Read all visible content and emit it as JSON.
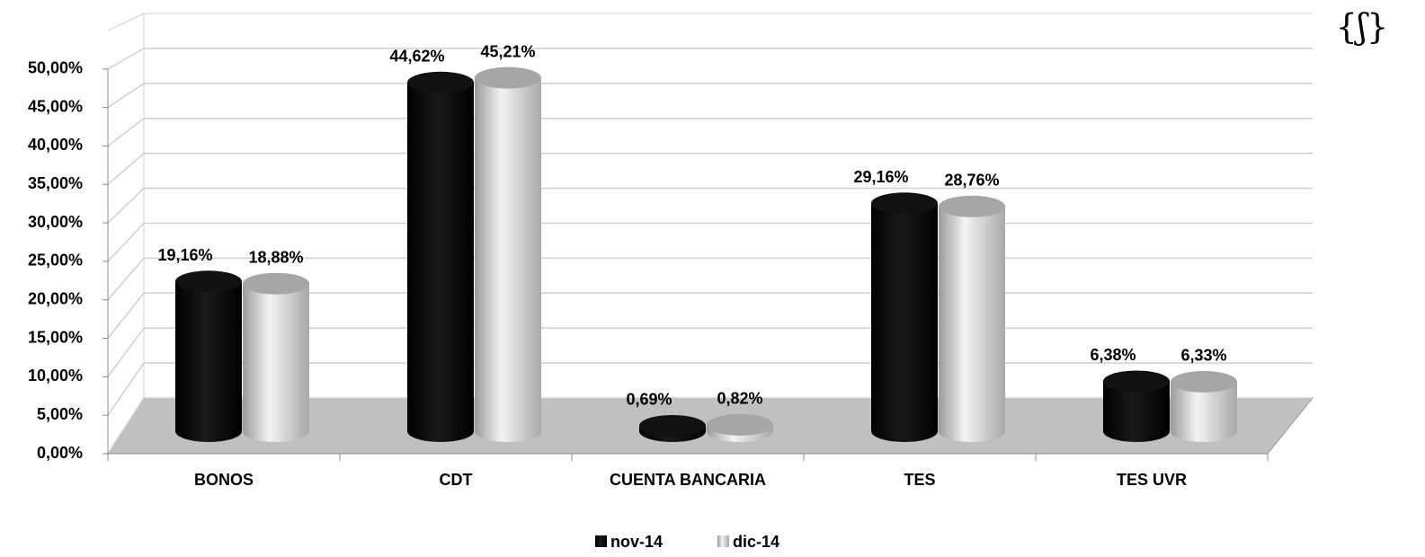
{
  "chart_data": {
    "type": "bar3d",
    "annotation": "{ʃ}",
    "categories": [
      "BONOS",
      "CDT",
      "CUENTA BANCARIA",
      "TES",
      "TES UVR"
    ],
    "series": [
      {
        "name": "nov-14",
        "color": "#000000",
        "values": [
          19.16,
          44.62,
          0.69,
          29.16,
          6.38
        ],
        "value_labels": [
          "19,16%",
          "44,62%",
          "0,69%",
          "29,16%",
          "6,38%"
        ]
      },
      {
        "name": "dic-14",
        "color": "#bfbfbf",
        "values": [
          18.88,
          45.21,
          0.82,
          28.76,
          6.33
        ],
        "value_labels": [
          "18,88%",
          "45,21%",
          "0,82%",
          "28,76%",
          "6,33%"
        ]
      }
    ],
    "ylim": [
      0,
      55
    ],
    "yticks": [
      {
        "value": 0,
        "label": "0,00%"
      },
      {
        "value": 5,
        "label": "5,00%"
      },
      {
        "value": 10,
        "label": "10,00%"
      },
      {
        "value": 15,
        "label": "15,00%"
      },
      {
        "value": 20,
        "label": "20,00%"
      },
      {
        "value": 25,
        "label": "25,00%"
      },
      {
        "value": 30,
        "label": "30,00%"
      },
      {
        "value": 35,
        "label": "35,00%"
      },
      {
        "value": 40,
        "label": "40,00%"
      },
      {
        "value": 45,
        "label": "45,00%"
      },
      {
        "value": 50,
        "label": "50,00%"
      }
    ],
    "grid": true,
    "legend": "bottom"
  }
}
